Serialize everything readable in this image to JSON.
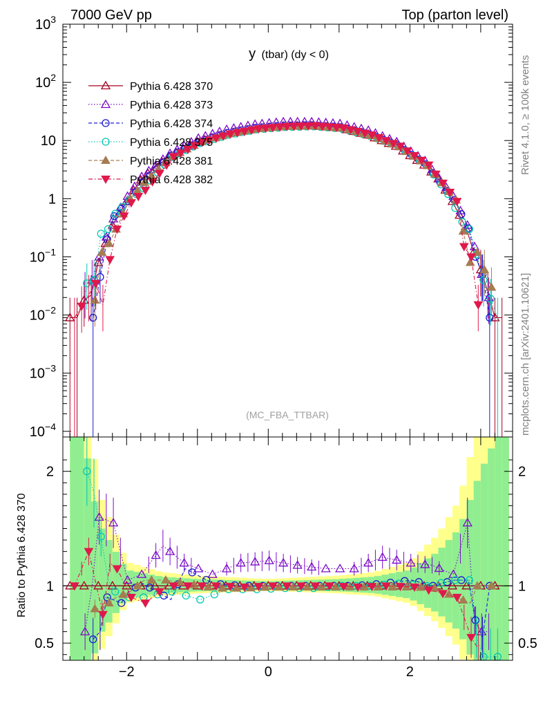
{
  "header": {
    "energy_label": "7000 GeV pp",
    "process_label": "Top (parton level)"
  },
  "side_labels": {
    "rivet": "Rivet 4.1.0, ≥ 100k events",
    "mcplots": "mcplots.cern.ch [arXiv:2401.10621]"
  },
  "chart_data": {
    "type": "scatter",
    "title": "y (tbar) (dy < 0)",
    "title_main": "y",
    "title_rest": "(tbar) (dy < 0)",
    "watermark": "(MC_FBA_TTBAR)",
    "xlim": [
      -2.9,
      3.45
    ],
    "upper": {
      "ylabel": "",
      "yscale": "log",
      "ylim": [
        8e-05,
        1000
      ],
      "ytick_labels": [
        {
          "value": 1000,
          "base": "10",
          "exp": "3"
        },
        {
          "value": 100,
          "base": "10",
          "exp": "2"
        },
        {
          "value": 10,
          "base": "10",
          "exp": ""
        },
        {
          "value": 1,
          "base": "1",
          "exp": ""
        },
        {
          "value": 0.1,
          "base": "10",
          "exp": "−1"
        },
        {
          "value": 0.01,
          "base": "10",
          "exp": "−2"
        },
        {
          "value": 0.001,
          "base": "10",
          "exp": "−3"
        },
        {
          "value": 0.0001,
          "base": "10",
          "exp": "−4"
        }
      ]
    },
    "lower": {
      "ylabel": "Ratio to Pythia 6.428 370",
      "ylim": [
        0.35,
        2.3
      ],
      "ytick_labels": [
        {
          "value": 0.5,
          "label": "0.5"
        },
        {
          "value": 1,
          "label": "1"
        },
        {
          "value": 2,
          "label": "2"
        }
      ]
    },
    "xtick_labels": [
      {
        "value": -2,
        "label": "−2"
      },
      {
        "value": 0,
        "label": "0"
      },
      {
        "value": 2,
        "label": "2"
      }
    ],
    "series": [
      {
        "name": "Pythia 6.428 370",
        "color": "#a50021",
        "marker": "triangle-open",
        "dash": "solid",
        "offset": 0.0,
        "profile": [
          [
            -2.8,
            0.009
          ],
          [
            -2.7,
            0.009
          ],
          [
            -2.6,
            0.018
          ],
          [
            -2.5,
            0.022
          ],
          [
            -2.4,
            0.08
          ],
          [
            -2.3,
            0.17
          ],
          [
            -2.2,
            0.35
          ],
          [
            -2.1,
            0.55
          ],
          [
            -2.0,
            0.9
          ],
          [
            -1.9,
            1.4
          ],
          [
            -1.8,
            2.1
          ],
          [
            -1.6,
            3.5
          ],
          [
            -1.4,
            5.2
          ],
          [
            -1.2,
            7.2
          ],
          [
            -1.0,
            9.5
          ],
          [
            -0.6,
            13
          ],
          [
            -0.2,
            16
          ],
          [
            0.2,
            17.5
          ],
          [
            0.6,
            18
          ],
          [
            1.0,
            16.5
          ],
          [
            1.4,
            12.5
          ],
          [
            1.8,
            8
          ],
          [
            2.2,
            3.8
          ],
          [
            2.4,
            2.2
          ],
          [
            2.6,
            0.9
          ],
          [
            2.8,
            0.3
          ],
          [
            2.9,
            0.12
          ],
          [
            3.0,
            0.06
          ],
          [
            3.1,
            0.025
          ],
          [
            3.2,
            0.009
          ],
          [
            3.3,
            0.009
          ]
        ],
        "ratio": [
          [
            -2.8,
            1
          ],
          [
            -2.5,
            1
          ],
          [
            -2.0,
            1
          ],
          [
            0,
            1
          ],
          [
            2.0,
            1
          ],
          [
            3.3,
            1
          ]
        ]
      },
      {
        "name": "Pythia 6.428 373",
        "color": "#7a0ac8",
        "marker": "triangle-open",
        "dash": "dotted",
        "offset": 0.013,
        "profile": [
          [
            -2.6,
            0.025
          ],
          [
            -2.5,
            0.04
          ],
          [
            -2.4,
            0.1
          ],
          [
            -2.3,
            0.22
          ],
          [
            -2.2,
            0.45
          ],
          [
            -2.0,
            1.1
          ],
          [
            -1.8,
            2.4
          ],
          [
            -1.4,
            6
          ],
          [
            -1.0,
            11
          ],
          [
            -0.6,
            15.5
          ],
          [
            -0.2,
            19
          ],
          [
            0.2,
            21
          ],
          [
            0.6,
            21
          ],
          [
            1.0,
            19.5
          ],
          [
            1.4,
            15
          ],
          [
            1.8,
            9.5
          ],
          [
            2.2,
            4.5
          ],
          [
            2.6,
            1.1
          ],
          [
            2.8,
            0.35
          ],
          [
            2.9,
            0.15
          ],
          [
            3.0,
            0.05
          ],
          [
            3.1,
            0.02
          ]
        ],
        "ratio": [
          [
            -2.6,
            0.6
          ],
          [
            -2.5,
            1.0
          ],
          [
            -2.4,
            1.6
          ],
          [
            -2.2,
            1.55
          ],
          [
            -2.0,
            1.05
          ],
          [
            -1.8,
            1.1
          ],
          [
            -1.5,
            1.35
          ],
          [
            -1.2,
            1.2
          ],
          [
            -0.8,
            1.1
          ],
          [
            -0.4,
            1.2
          ],
          [
            0,
            1.22
          ],
          [
            0.4,
            1.18
          ],
          [
            0.8,
            1.15
          ],
          [
            1.2,
            1.15
          ],
          [
            1.6,
            1.25
          ],
          [
            2.0,
            1.2
          ],
          [
            2.3,
            1.18
          ],
          [
            2.6,
            1.1
          ],
          [
            2.8,
            1.55
          ],
          [
            2.9,
            0.7
          ],
          [
            3.0,
            0.6
          ]
        ]
      },
      {
        "name": "Pythia 6.428 374",
        "color": "#1a1ad0",
        "marker": "circle-open",
        "dash": "dashed",
        "offset": 0.026,
        "profile": [
          [
            -2.5,
            0.009
          ],
          [
            -2.4,
            0.045
          ],
          [
            -2.3,
            0.2
          ],
          [
            -2.2,
            0.5
          ],
          [
            -2.0,
            0.9
          ],
          [
            -1.8,
            1.9
          ],
          [
            -1.4,
            5.5
          ],
          [
            -1.0,
            9.4
          ],
          [
            -0.6,
            13.5
          ],
          [
            -0.2,
            16.5
          ],
          [
            0.2,
            18
          ],
          [
            0.6,
            18.3
          ],
          [
            1.0,
            17
          ],
          [
            1.4,
            12.8
          ],
          [
            1.8,
            8.3
          ],
          [
            2.2,
            3.9
          ],
          [
            2.6,
            0.95
          ],
          [
            2.8,
            0.31
          ],
          [
            2.9,
            0.1
          ],
          [
            3.0,
            0.05
          ],
          [
            3.1,
            0.009
          ]
        ],
        "ratio": [
          [
            -2.55,
            0.5
          ],
          [
            -2.4,
            0.6
          ],
          [
            -2.3,
            0.9
          ],
          [
            -2.1,
            0.85
          ],
          [
            -2.0,
            0.95
          ],
          [
            -1.8,
            1.02
          ],
          [
            -1.4,
            0.88
          ],
          [
            -1.2,
            1.15
          ],
          [
            -0.8,
            1.02
          ],
          [
            -0.4,
            1.0
          ],
          [
            0,
            1.0
          ],
          [
            0.4,
            1.0
          ],
          [
            0.8,
            1.0
          ],
          [
            1.2,
            1.0
          ],
          [
            1.6,
            1.02
          ],
          [
            2.0,
            1.05
          ],
          [
            2.3,
            1.0
          ],
          [
            2.6,
            1.05
          ],
          [
            2.8,
            1.05
          ],
          [
            2.9,
            0.7
          ],
          [
            3.0,
            0.55
          ],
          [
            3.1,
            1.0
          ]
        ]
      },
      {
        "name": "Pythia 6.428 375",
        "color": "#00c8b4",
        "marker": "circle-open",
        "dash": "dotted",
        "offset": 0.039,
        "profile": [
          [
            -2.6,
            0.035
          ],
          [
            -2.5,
            0.04
          ],
          [
            -2.4,
            0.25
          ],
          [
            -2.3,
            0.3
          ],
          [
            -2.2,
            0.55
          ],
          [
            -2.0,
            0.95
          ],
          [
            -1.8,
            1.5
          ],
          [
            -1.4,
            5.2
          ],
          [
            -1.0,
            9
          ],
          [
            -0.6,
            12.5
          ],
          [
            -0.2,
            15.5
          ],
          [
            0.2,
            17
          ],
          [
            0.6,
            17.5
          ],
          [
            1.0,
            16
          ],
          [
            1.4,
            12
          ],
          [
            1.8,
            8
          ],
          [
            2.2,
            3.8
          ],
          [
            2.5,
            1.2
          ],
          [
            2.7,
            0.4
          ],
          [
            2.8,
            0.3
          ],
          [
            2.9,
            0.11
          ],
          [
            3.0,
            0.04
          ],
          [
            3.2,
            0.009
          ]
        ],
        "ratio": [
          [
            -2.55,
            2.0
          ],
          [
            -2.3,
            1.05
          ],
          [
            -2.2,
            0.95
          ],
          [
            -2.0,
            0.9
          ],
          [
            -1.8,
            0.9
          ],
          [
            -1.4,
            0.95
          ],
          [
            -1.0,
            0.88
          ],
          [
            -0.6,
            0.97
          ],
          [
            -0.2,
            0.97
          ],
          [
            0.2,
            0.98
          ],
          [
            0.6,
            0.98
          ],
          [
            1.0,
            1.0
          ],
          [
            1.4,
            1.0
          ],
          [
            1.8,
            1.02
          ],
          [
            2.2,
            1.0
          ],
          [
            2.6,
            1.05
          ],
          [
            2.8,
            1.05
          ],
          [
            2.9,
            0.55
          ],
          [
            3.0,
            0.38
          ]
        ]
      },
      {
        "name": "Pythia 6.428 381",
        "color": "#a67c52",
        "marker": "triangle-full",
        "dash": "dashed",
        "offset": 0.052,
        "profile": [
          [
            -2.5,
            0.018
          ],
          [
            -2.4,
            0.12
          ],
          [
            -2.3,
            0.17
          ],
          [
            -2.2,
            0.3
          ],
          [
            -2.0,
            1.0
          ],
          [
            -1.8,
            1.9
          ],
          [
            -1.4,
            5.4
          ],
          [
            -1.0,
            9.5
          ],
          [
            -0.6,
            13
          ],
          [
            -0.2,
            16
          ],
          [
            0.2,
            17.5
          ],
          [
            0.6,
            17.8
          ],
          [
            1.0,
            16.3
          ],
          [
            1.4,
            12.2
          ],
          [
            1.8,
            7.8
          ],
          [
            2.2,
            3.7
          ],
          [
            2.6,
            0.95
          ],
          [
            2.8,
            0.08
          ],
          [
            2.9,
            0.12
          ],
          [
            3.0,
            0.06
          ],
          [
            3.1,
            0.03
          ]
        ],
        "ratio": [
          [
            -2.6,
            0.8
          ],
          [
            -2.4,
            0.8
          ],
          [
            -2.2,
            0.9
          ],
          [
            -2.0,
            0.95
          ],
          [
            -1.8,
            1.05
          ],
          [
            -1.5,
            1.05
          ],
          [
            -1.2,
            1.02
          ],
          [
            -0.8,
            0.98
          ],
          [
            -0.4,
            0.98
          ],
          [
            0,
            0.99
          ],
          [
            0.4,
            0.99
          ],
          [
            0.8,
            0.99
          ],
          [
            1.2,
            0.99
          ],
          [
            1.6,
            0.99
          ],
          [
            2.0,
            0.99
          ],
          [
            2.3,
            0.98
          ],
          [
            2.6,
            0.9
          ],
          [
            2.8,
            0.85
          ],
          [
            2.9,
            1.0
          ],
          [
            3.1,
            1.0
          ],
          [
            3.2,
            1.0
          ]
        ]
      },
      {
        "name": "Pythia 6.428 382",
        "color": "#e0184b",
        "marker": "triangle-down-full",
        "dash": "dashdot",
        "offset": 0.065,
        "profile": [
          [
            -2.8,
            0.009
          ],
          [
            -2.5,
            0.035
          ],
          [
            -2.4,
            0.015
          ],
          [
            -2.3,
            0.09
          ],
          [
            -2.2,
            0.3
          ],
          [
            -2.0,
            0.85
          ],
          [
            -1.8,
            1.4
          ],
          [
            -1.4,
            5.3
          ],
          [
            -1.0,
            9.4
          ],
          [
            -0.6,
            13
          ],
          [
            -0.2,
            16
          ],
          [
            0.2,
            17.5
          ],
          [
            0.6,
            18
          ],
          [
            1.0,
            16.5
          ],
          [
            1.4,
            12.5
          ],
          [
            1.8,
            8
          ],
          [
            2.2,
            3.8
          ],
          [
            2.6,
            0.9
          ],
          [
            2.7,
            0.15
          ],
          [
            2.8,
            0.1
          ],
          [
            2.9,
            0.015
          ]
        ],
        "ratio": [
          [
            -2.8,
            1.0
          ],
          [
            -2.6,
            1.3
          ],
          [
            -2.4,
            0.75
          ],
          [
            -2.3,
            1.2
          ],
          [
            -2.2,
            1.15
          ],
          [
            -2.0,
            0.9
          ],
          [
            -1.8,
            0.85
          ],
          [
            -1.5,
            1.0
          ],
          [
            -1.2,
            1.0
          ],
          [
            -0.8,
            1.0
          ],
          [
            -0.4,
            0.99
          ],
          [
            0,
            1.0
          ],
          [
            0.4,
            1.0
          ],
          [
            0.8,
            1.0
          ],
          [
            1.2,
            0.99
          ],
          [
            1.6,
            1.0
          ],
          [
            2.0,
            0.99
          ],
          [
            2.3,
            0.95
          ],
          [
            2.6,
            0.9
          ],
          [
            2.8,
            0.55
          ],
          [
            2.9,
            0.45
          ]
        ]
      }
    ],
    "bands": {
      "yellow": "#ffff8c",
      "green": "#90ee90",
      "widths": [
        [
          -2.8,
          1.4
        ],
        [
          -2.6,
          1.3
        ],
        [
          -2.4,
          0.55
        ],
        [
          -2.2,
          0.35
        ],
        [
          -2.0,
          0.14
        ],
        [
          -1.5,
          0.08
        ],
        [
          -1.0,
          0.06
        ],
        [
          0,
          0.04
        ],
        [
          1.0,
          0.06
        ],
        [
          1.5,
          0.08
        ],
        [
          2.0,
          0.14
        ],
        [
          2.4,
          0.3
        ],
        [
          2.7,
          0.5
        ],
        [
          3.0,
          1.0
        ],
        [
          3.3,
          1.4
        ]
      ]
    }
  }
}
